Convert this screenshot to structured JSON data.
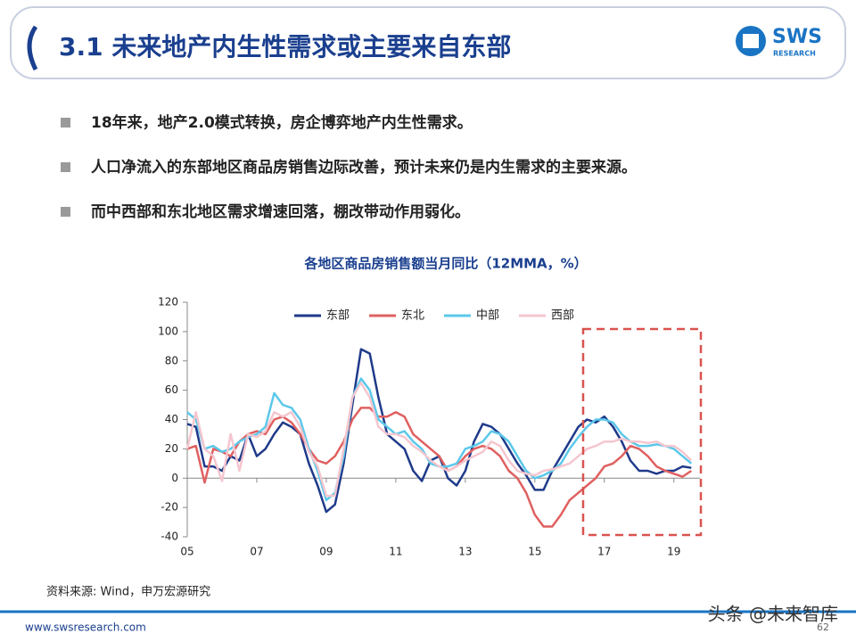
{
  "header": {
    "title": "3.1 未来地产内生性需求或主要来自东部",
    "logo": "SWS",
    "logo_sub": "RESEARCH"
  },
  "bullets": [
    "18年来，地产2.0模式转换，房企博弈地产内生性需求。",
    "人口净流入的东部地区商品房销售边际改善，预计未来仍是内生需求的主要来源。",
    "而中西部和东北地区需求增速回落，棚改带动作用弱化。"
  ],
  "chart_data": {
    "type": "line",
    "title": "各地区商品房销售额当月同比（12MMA，%）",
    "x": [
      5,
      5.25,
      5.5,
      5.75,
      6,
      6.25,
      6.5,
      6.75,
      7,
      7.25,
      7.5,
      7.75,
      8,
      8.25,
      8.5,
      8.75,
      9,
      9.25,
      9.5,
      9.75,
      10,
      10.25,
      10.5,
      10.75,
      11,
      11.25,
      11.5,
      11.75,
      12,
      12.25,
      12.5,
      12.75,
      13,
      13.25,
      13.5,
      13.75,
      14,
      14.25,
      14.5,
      14.75,
      15,
      15.25,
      15.5,
      15.75,
      16,
      16.25,
      16.5,
      16.75,
      17,
      17.25,
      17.5,
      17.75,
      18,
      18.25,
      18.5,
      18.75,
      19,
      19.25,
      19.5
    ],
    "xlim": [
      5,
      19.75
    ],
    "xticks": [
      {
        "value": 5,
        "label": "05"
      },
      {
        "value": 7,
        "label": "07"
      },
      {
        "value": 9,
        "label": "09"
      },
      11,
      13,
      15,
      17,
      19
    ],
    "ylim": [
      -40,
      120
    ],
    "yticks": [
      -40,
      -20,
      0,
      20,
      40,
      60,
      80,
      100,
      120
    ],
    "series": [
      {
        "name": "东部",
        "color": "#1f3a8a",
        "values": [
          37,
          35,
          8,
          8,
          5,
          15,
          12,
          30,
          15,
          20,
          30,
          38,
          35,
          30,
          10,
          -5,
          -23,
          -18,
          10,
          50,
          88,
          85,
          55,
          30,
          25,
          20,
          5,
          -2,
          12,
          15,
          0,
          -5,
          5,
          25,
          37,
          35,
          30,
          20,
          10,
          2,
          -8,
          -8,
          5,
          15,
          25,
          35,
          40,
          38,
          42,
          35,
          25,
          12,
          5,
          5,
          3,
          5,
          5,
          8,
          7
        ]
      },
      {
        "name": "东北",
        "color": "#e06060",
        "values": [
          20,
          22,
          -3,
          20,
          18,
          15,
          25,
          30,
          32,
          30,
          40,
          42,
          38,
          30,
          20,
          12,
          10,
          15,
          25,
          40,
          48,
          48,
          42,
          42,
          45,
          42,
          30,
          25,
          20,
          15,
          5,
          8,
          15,
          20,
          22,
          20,
          15,
          5,
          0,
          -10,
          -25,
          -33,
          -33,
          -25,
          -15,
          -10,
          -5,
          0,
          8,
          10,
          15,
          22,
          20,
          15,
          8,
          5,
          3,
          1,
          5
        ]
      },
      {
        "name": "中部",
        "color": "#5cc8ea",
        "values": [
          45,
          40,
          20,
          22,
          18,
          20,
          25,
          28,
          30,
          35,
          58,
          50,
          48,
          40,
          20,
          5,
          -15,
          -10,
          15,
          55,
          68,
          60,
          40,
          35,
          30,
          32,
          25,
          20,
          10,
          8,
          8,
          10,
          20,
          22,
          25,
          32,
          30,
          25,
          15,
          5,
          0,
          2,
          5,
          10,
          20,
          28,
          35,
          40,
          40,
          38,
          30,
          25,
          22,
          22,
          23,
          22,
          20,
          15,
          10
        ]
      },
      {
        "name": "西部",
        "color": "#f5c6cf",
        "values": [
          20,
          45,
          20,
          15,
          -2,
          30,
          5,
          30,
          28,
          32,
          45,
          42,
          45,
          35,
          18,
          8,
          -12,
          -12,
          20,
          55,
          65,
          55,
          35,
          30,
          30,
          28,
          22,
          18,
          12,
          8,
          5,
          8,
          12,
          15,
          18,
          25,
          22,
          12,
          5,
          3,
          2,
          5,
          6,
          8,
          10,
          15,
          20,
          22,
          25,
          25,
          27,
          25,
          25,
          24,
          25,
          22,
          22,
          18,
          12
        ]
      }
    ]
  },
  "source": "资料来源: Wind，申万宏源研究",
  "footer": {
    "url": "www.swsresearch.com",
    "page": "62",
    "watermark": "头条 @未来智库"
  }
}
